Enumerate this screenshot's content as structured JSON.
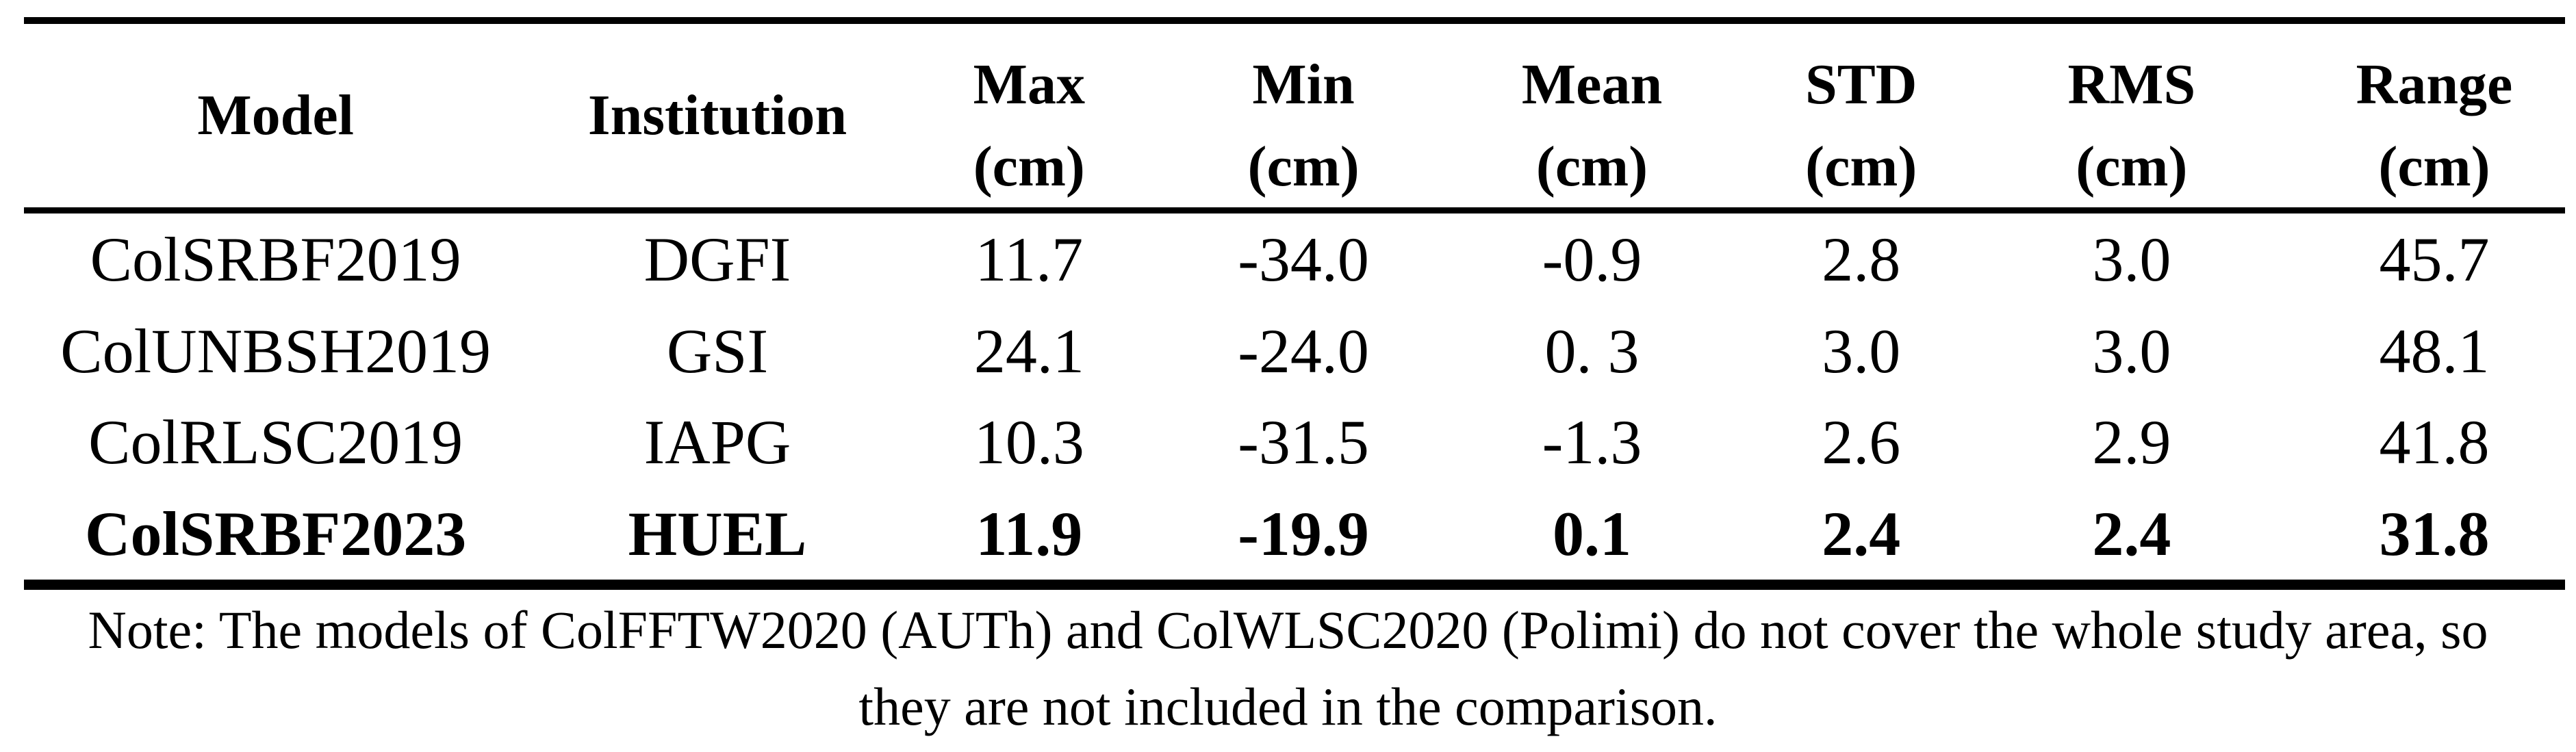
{
  "colors": {
    "text": "#000000",
    "background": "#ffffff",
    "rule": "#000000"
  },
  "table": {
    "columns": [
      {
        "label": "Model",
        "unit": ""
      },
      {
        "label": "Institution",
        "unit": ""
      },
      {
        "label": "Max",
        "unit": "(cm)"
      },
      {
        "label": "Min",
        "unit": "(cm)"
      },
      {
        "label": "Mean",
        "unit": "(cm)"
      },
      {
        "label": "STD",
        "unit": "(cm)"
      },
      {
        "label": "RMS",
        "unit": "(cm)"
      },
      {
        "label": "Range",
        "unit": "(cm)"
      }
    ],
    "rows": [
      {
        "model": "ColSRBF2019",
        "institution": "DGFI",
        "max": "11.7",
        "min": "-34.0",
        "mean": "-0.9",
        "std": "2.8",
        "rms": "3.0",
        "range": "45.7",
        "bold": false
      },
      {
        "model": "ColUNBSH2019",
        "institution": "GSI",
        "max": "24.1",
        "min": "-24.0",
        "mean": "0. 3",
        "std": "3.0",
        "rms": "3.0",
        "range": "48.1",
        "bold": false
      },
      {
        "model": "ColRLSC2019",
        "institution": "IAPG",
        "max": "10.3",
        "min": "-31.5",
        "mean": "-1.3",
        "std": "2.6",
        "rms": "2.9",
        "range": "41.8",
        "bold": false
      },
      {
        "model": "ColSRBF2023",
        "institution": "HUEL",
        "max": "11.9",
        "min": "-19.9",
        "mean": "0.1",
        "std": "2.4",
        "rms": "2.4",
        "range": "31.8",
        "bold": true
      }
    ]
  },
  "note": {
    "lines": [
      "Note: The models of ColFFTW2020 (AUTh) and ColWLSC2020 (Polimi) do not cover the whole study area, so",
      "they are not included in the comparison."
    ]
  }
}
